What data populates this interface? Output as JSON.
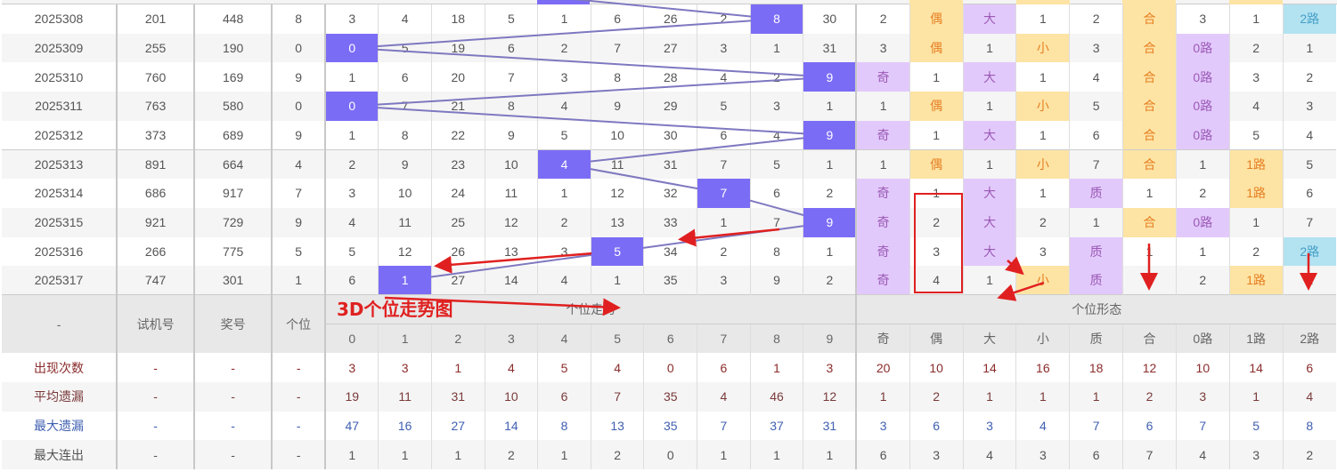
{
  "title": "3D个位走势图",
  "colors": {
    "hit": "#7b6cf6",
    "line": "#7e78c0",
    "purple": "#e2c9fb",
    "orange": "#fde4a4",
    "blue": "#b3e2f1",
    "annotation": "#e02020"
  },
  "form_headers": [
    "奇",
    "偶",
    "大",
    "小",
    "质",
    "合",
    "0路",
    "1路",
    "2路"
  ],
  "form_highlight": {
    "奇": "purple",
    "偶": "orange",
    "大": "purple",
    "小": "orange",
    "质": "purple",
    "合": "orange",
    "0路": "purple",
    "1路": "orange",
    "2路": "blue"
  },
  "rows": [
    {
      "period": "2025308",
      "test": "201",
      "draw": "448",
      "digit": "8",
      "trend": [
        "3",
        "4",
        "18",
        "5",
        "1",
        "6",
        "26",
        "2",
        "8",
        "30"
      ],
      "hit": 8,
      "form": [
        "2",
        "偶",
        "大",
        "1",
        "2",
        "合",
        "3",
        "1",
        "2路"
      ]
    },
    {
      "period": "2025309",
      "test": "255",
      "draw": "190",
      "digit": "0",
      "trend": [
        "0",
        "5",
        "19",
        "6",
        "2",
        "7",
        "27",
        "3",
        "1",
        "31"
      ],
      "hit": 0,
      "form": [
        "3",
        "偶",
        "1",
        "小",
        "3",
        "合",
        "0路",
        "2",
        "1"
      ]
    },
    {
      "period": "2025310",
      "test": "760",
      "draw": "169",
      "digit": "9",
      "trend": [
        "1",
        "6",
        "20",
        "7",
        "3",
        "8",
        "28",
        "4",
        "2",
        "9"
      ],
      "hit": 9,
      "form": [
        "奇",
        "1",
        "大",
        "1",
        "4",
        "合",
        "0路",
        "3",
        "2"
      ]
    },
    {
      "period": "2025311",
      "test": "763",
      "draw": "580",
      "digit": "0",
      "trend": [
        "0",
        "7",
        "21",
        "8",
        "4",
        "9",
        "29",
        "5",
        "3",
        "1"
      ],
      "hit": 0,
      "form": [
        "1",
        "偶",
        "1",
        "小",
        "5",
        "合",
        "0路",
        "4",
        "3"
      ]
    },
    {
      "period": "2025312",
      "test": "373",
      "draw": "689",
      "digit": "9",
      "trend": [
        "1",
        "8",
        "22",
        "9",
        "5",
        "10",
        "30",
        "6",
        "4",
        "9"
      ],
      "hit": 9,
      "form": [
        "奇",
        "1",
        "大",
        "1",
        "6",
        "合",
        "0路",
        "5",
        "4"
      ]
    },
    {
      "period": "2025313",
      "test": "891",
      "draw": "664",
      "digit": "4",
      "trend": [
        "2",
        "9",
        "23",
        "10",
        "4",
        "11",
        "31",
        "7",
        "5",
        "1"
      ],
      "hit": 4,
      "form": [
        "1",
        "偶",
        "1",
        "小",
        "7",
        "合",
        "1",
        "1路",
        "5"
      ]
    },
    {
      "period": "2025314",
      "test": "686",
      "draw": "917",
      "digit": "7",
      "trend": [
        "3",
        "10",
        "24",
        "11",
        "1",
        "12",
        "32",
        "7",
        "6",
        "2"
      ],
      "hit": 7,
      "form": [
        "奇",
        "1",
        "大",
        "1",
        "质",
        "1",
        "2",
        "1路",
        "6"
      ]
    },
    {
      "period": "2025315",
      "test": "921",
      "draw": "729",
      "digit": "9",
      "trend": [
        "4",
        "11",
        "25",
        "12",
        "2",
        "13",
        "33",
        "1",
        "7",
        "9"
      ],
      "hit": 9,
      "form": [
        "奇",
        "2",
        "大",
        "2",
        "1",
        "合",
        "0路",
        "1",
        "7"
      ]
    },
    {
      "period": "2025316",
      "test": "266",
      "draw": "775",
      "digit": "5",
      "trend": [
        "5",
        "12",
        "26",
        "13",
        "3",
        "5",
        "34",
        "2",
        "8",
        "1"
      ],
      "hit": 5,
      "form": [
        "奇",
        "3",
        "大",
        "3",
        "质",
        "1",
        "1",
        "2",
        "2路"
      ]
    },
    {
      "period": "2025317",
      "test": "747",
      "draw": "301",
      "digit": "1",
      "trend": [
        "6",
        "1",
        "27",
        "14",
        "4",
        "1",
        "35",
        "3",
        "9",
        "2"
      ],
      "hit": 1,
      "form": [
        "奇",
        "4",
        "1",
        "小",
        "质",
        "2",
        "2",
        "1路",
        "1"
      ]
    }
  ],
  "header": {
    "period": "-",
    "test": "试机号",
    "draw": "奖号",
    "digit": "个位",
    "trend_group": "个位走势",
    "form_group": "个位形态",
    "digits": [
      "0",
      "1",
      "2",
      "3",
      "4",
      "5",
      "6",
      "7",
      "8",
      "9"
    ]
  },
  "stats": [
    {
      "label": "出现次数",
      "color": "red",
      "cols": [
        "-",
        "-",
        "-"
      ],
      "values": [
        "3",
        "3",
        "1",
        "4",
        "5",
        "4",
        "0",
        "6",
        "1",
        "3",
        "20",
        "10",
        "14",
        "16",
        "18",
        "12",
        "10",
        "14",
        "6"
      ]
    },
    {
      "label": "平均遗漏",
      "color": "brown",
      "cols": [
        "-",
        "-",
        "-"
      ],
      "values": [
        "19",
        "11",
        "31",
        "10",
        "6",
        "7",
        "35",
        "4",
        "46",
        "12",
        "1",
        "2",
        "1",
        "1",
        "1",
        "2",
        "3",
        "1",
        "4"
      ]
    },
    {
      "label": "最大遗漏",
      "color": "blue",
      "cols": [
        "-",
        "-",
        "-"
      ],
      "values": [
        "47",
        "16",
        "27",
        "14",
        "8",
        "13",
        "35",
        "7",
        "37",
        "31",
        "3",
        "6",
        "3",
        "4",
        "7",
        "6",
        "7",
        "5",
        "8"
      ]
    },
    {
      "label": "最大连出",
      "color": "dark",
      "cols": [
        "-",
        "-",
        "-"
      ],
      "values": [
        "1",
        "1",
        "1",
        "2",
        "1",
        "2",
        "0",
        "1",
        "1",
        "1",
        "6",
        "3",
        "4",
        "3",
        "6",
        "7",
        "4",
        "3",
        "2"
      ]
    }
  ]
}
